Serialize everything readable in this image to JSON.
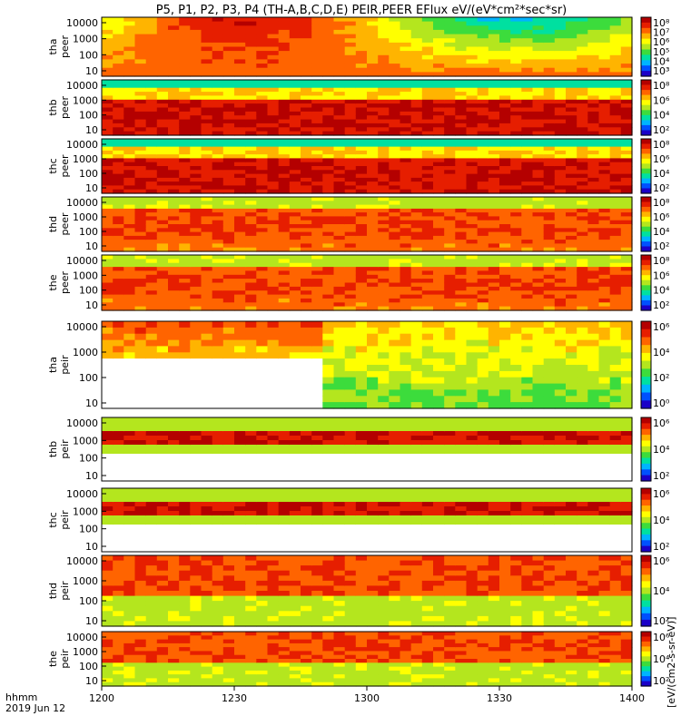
{
  "title": "P5, P1, P2, P3, P4 (TH-A,B,C,D,E) PEIR,PEER EFlux eV/(eV*cm²*sec*sr)",
  "footer": {
    "time_label": "hhmm",
    "date_label": "2019 Jun 12"
  },
  "colorbar_label": "[eV/(cm2-s-sr-eV)]",
  "palette": [
    "#ffffff",
    "#1a00c8",
    "#0050ff",
    "#00b4ff",
    "#00e0a0",
    "#3cdc3c",
    "#b4e61e",
    "#ffff00",
    "#ffb400",
    "#ff6400",
    "#e61e00",
    "#b40000"
  ],
  "chart_data": {
    "type": "heatmap",
    "x_ticks": [
      "1200",
      "1230",
      "1300",
      "1330",
      "1400"
    ],
    "x_range": [
      "12:00",
      "14:00"
    ],
    "panels": [
      {
        "label": [
          "tha",
          "peer"
        ],
        "y_ticks": [
          "10000",
          "1000",
          "100",
          "10"
        ],
        "cb_ticks": [
          "10⁸",
          "10⁷",
          "10⁶",
          "10⁵",
          "10⁴",
          "10³"
        ],
        "style": "smooth"
      },
      {
        "label": [
          "thb",
          "peer"
        ],
        "y_ticks": [
          "10000",
          "1000",
          "100",
          "10"
        ],
        "cb_ticks": [
          "10⁸",
          "10⁶",
          "10⁴",
          "10²"
        ],
        "style": "band"
      },
      {
        "label": [
          "thc",
          "peer"
        ],
        "y_ticks": [
          "10000",
          "1000",
          "100",
          "10"
        ],
        "cb_ticks": [
          "10⁸",
          "10⁶",
          "10⁴",
          "10²"
        ],
        "style": "band"
      },
      {
        "label": [
          "thd",
          "peer"
        ],
        "y_ticks": [
          "10000",
          "1000",
          "100",
          "10"
        ],
        "cb_ticks": [
          "10⁸",
          "10⁶",
          "10⁴",
          "10²"
        ],
        "style": "mixed"
      },
      {
        "label": [
          "the",
          "peer"
        ],
        "y_ticks": [
          "10000",
          "1000",
          "100",
          "10"
        ],
        "cb_ticks": [
          "10⁸",
          "10⁶",
          "10⁴",
          "10²"
        ],
        "style": "mixed"
      },
      {
        "label": [
          "tha",
          "peir"
        ],
        "y_ticks": [
          "10000",
          "1000",
          "100",
          "10"
        ],
        "cb_ticks": [
          "10⁶",
          "10⁴",
          "10²",
          "10⁰"
        ],
        "style": "sparse"
      },
      {
        "label": [
          "thb",
          "peir"
        ],
        "y_ticks": [
          "10000",
          "1000",
          "100",
          "10"
        ],
        "cb_ticks": [
          "10⁶",
          "10⁴",
          "10²"
        ],
        "style": "narrow"
      },
      {
        "label": [
          "thc",
          "peir"
        ],
        "y_ticks": [
          "10000",
          "1000",
          "100",
          "10"
        ],
        "cb_ticks": [
          "10⁶",
          "10⁴",
          "10²"
        ],
        "style": "narrow"
      },
      {
        "label": [
          "thd",
          "peir"
        ],
        "y_ticks": [
          "10000",
          "1000",
          "100",
          "10"
        ],
        "cb_ticks": [
          "10⁶",
          "10⁴",
          "10²"
        ],
        "style": "broad"
      },
      {
        "label": [
          "the",
          "peir"
        ],
        "y_ticks": [
          "10000",
          "1000",
          "100",
          "10"
        ],
        "cb_ticks": [
          "10⁶",
          "10⁴",
          "10²"
        ],
        "style": "broad"
      }
    ]
  }
}
